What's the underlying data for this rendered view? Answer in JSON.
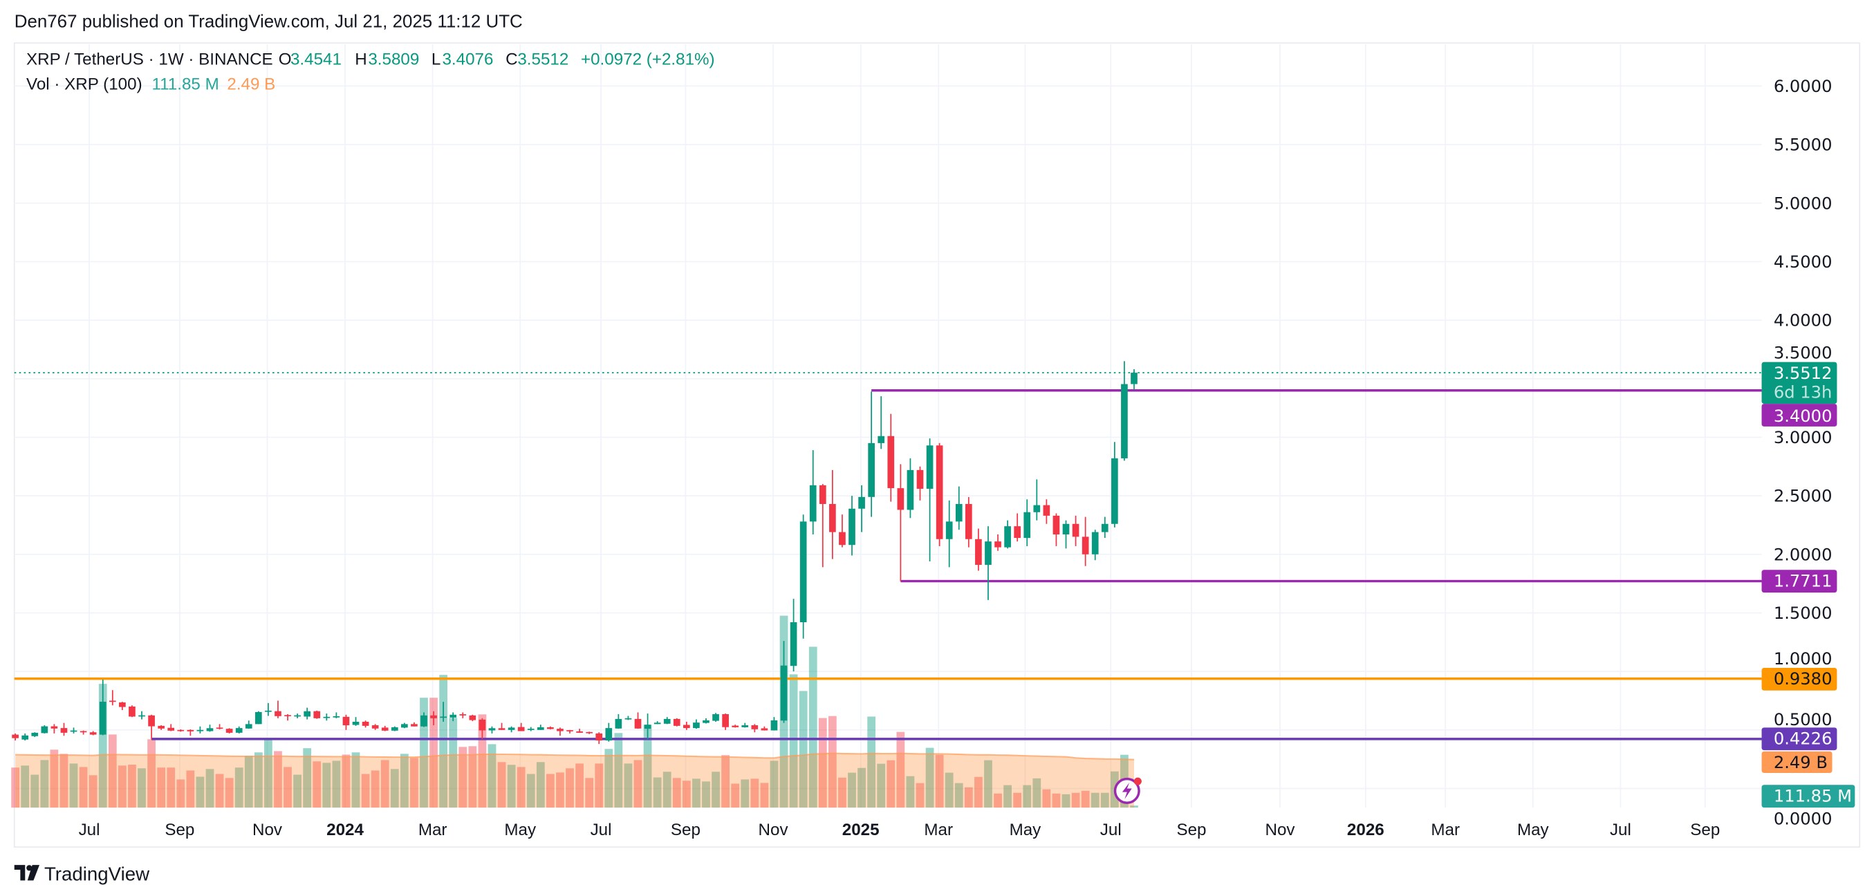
{
  "header": {
    "published": "Den767 published on TradingView.com, Jul 21, 2025 11:12 UTC"
  },
  "legend": {
    "symbol": "XRP / TetherUS · 1W · BINANCE",
    "o_label": "O",
    "o_value": "3.4541",
    "h_label": "H",
    "h_value": "3.5809",
    "l_label": "L",
    "l_value": "3.4076",
    "c_label": "C",
    "c_value": "3.5512",
    "change": "+0.0972 (+2.81%)",
    "vol_label": "Vol · XRP (100)",
    "vol_value": "111.85 M",
    "vol_ma_value": "2.49 B"
  },
  "badges": {
    "last_price": "3.5512",
    "countdown": "6d 13h",
    "level_resistance": "3.4000",
    "level_support": "1.7711",
    "level_orange": "0.9380",
    "level_base": "0.4226",
    "vol_ma": "2.49 B",
    "vol": "111.85 M"
  },
  "footer": {
    "brand": "TradingView"
  },
  "colors": {
    "up": "#089981",
    "down": "#f23645",
    "purple": "#9c27b0",
    "indigo": "#673ab7",
    "orange": "#ff9800",
    "vol_ma": "#ff9a55",
    "vol_badge": "#26a69a"
  },
  "chart_data": {
    "type": "candlestick",
    "title": "XRP / TetherUS · 1W · BINANCE",
    "interval": "1W",
    "y_ticks": [
      "0.0000",
      "0.5000",
      "1.0000",
      "1.5000",
      "2.0000",
      "2.5000",
      "3.0000",
      "3.5000",
      "4.0000",
      "4.5000",
      "5.0000",
      "5.5000",
      "6.0000"
    ],
    "ylim": [
      0,
      6
    ],
    "x_ticks": [
      {
        "label": "Jul",
        "week": 7.6,
        "bold": false
      },
      {
        "label": "Sep",
        "week": 16.9,
        "bold": false
      },
      {
        "label": "Nov",
        "week": 25.9,
        "bold": false
      },
      {
        "label": "2024",
        "week": 33.9,
        "bold": true
      },
      {
        "label": "Mar",
        "week": 42.9,
        "bold": false
      },
      {
        "label": "May",
        "week": 51.9,
        "bold": false
      },
      {
        "label": "Jul",
        "week": 60.2,
        "bold": false
      },
      {
        "label": "Sep",
        "week": 68.9,
        "bold": false
      },
      {
        "label": "Nov",
        "week": 77.9,
        "bold": false
      },
      {
        "label": "2025",
        "week": 86.9,
        "bold": true
      },
      {
        "label": "Mar",
        "week": 94.9,
        "bold": false
      },
      {
        "label": "May",
        "week": 103.8,
        "bold": false
      },
      {
        "label": "Jul",
        "week": 112.6,
        "bold": false
      },
      {
        "label": "Sep",
        "week": 120.9,
        "bold": false
      },
      {
        "label": "Nov",
        "week": 130.0,
        "bold": false
      },
      {
        "label": "2026",
        "week": 138.8,
        "bold": true
      },
      {
        "label": "Mar",
        "week": 147.0,
        "bold": false
      },
      {
        "label": "May",
        "week": 156.0,
        "bold": false
      },
      {
        "label": "Jul",
        "week": 165.0,
        "bold": false
      },
      {
        "label": "Sep",
        "week": 173.7,
        "bold": false
      }
    ],
    "horizontal_levels": [
      {
        "price": 3.4,
        "from_week": 88,
        "color": "purple"
      },
      {
        "price": 1.7711,
        "from_week": 91,
        "color": "purple"
      },
      {
        "price": 0.938,
        "from_week": -1,
        "color": "orange"
      },
      {
        "price": 0.4226,
        "from_week": 14,
        "color": "indigo"
      }
    ],
    "last_price": 3.5512,
    "volume_ma_length": 100,
    "volume_unit": "B",
    "candles_ohlcv": [
      [
        0.46,
        0.47,
        0.41,
        0.43,
        2.19
      ],
      [
        0.418,
        0.47,
        0.41,
        0.453,
        2.3
      ],
      [
        0.447,
        0.48,
        0.44,
        0.476,
        1.8
      ],
      [
        0.473,
        0.54,
        0.47,
        0.531,
        2.6
      ],
      [
        0.531,
        0.55,
        0.47,
        0.512,
        3.17
      ],
      [
        0.516,
        0.56,
        0.45,
        0.476,
        2.94
      ],
      [
        0.49,
        0.52,
        0.47,
        0.495,
        2.41
      ],
      [
        0.49,
        0.495,
        0.46,
        0.48,
        2.22
      ],
      [
        0.48,
        0.49,
        0.455,
        0.46,
        1.77
      ],
      [
        0.46,
        0.93,
        0.455,
        0.741,
        6.77
      ],
      [
        0.75,
        0.84,
        0.71,
        0.74,
        4.0
      ],
      [
        0.735,
        0.74,
        0.67,
        0.696,
        2.3
      ],
      [
        0.7,
        0.71,
        0.61,
        0.614,
        2.35
      ],
      [
        0.62,
        0.66,
        0.59,
        0.625,
        2.15
      ],
      [
        0.624,
        0.63,
        0.42,
        0.531,
        3.74
      ],
      [
        0.535,
        0.54,
        0.5,
        0.512,
        2.19
      ],
      [
        0.518,
        0.55,
        0.49,
        0.494,
        2.19
      ],
      [
        0.5,
        0.505,
        0.485,
        0.49,
        1.54
      ],
      [
        0.5,
        0.505,
        0.45,
        0.488,
        2.03
      ],
      [
        0.49,
        0.53,
        0.47,
        0.5,
        1.69
      ],
      [
        0.49,
        0.545,
        0.485,
        0.515,
        2.11
      ],
      [
        0.52,
        0.55,
        0.505,
        0.515,
        1.84
      ],
      [
        0.51,
        0.515,
        0.47,
        0.476,
        1.62
      ],
      [
        0.476,
        0.53,
        0.47,
        0.516,
        2.19
      ],
      [
        0.512,
        0.58,
        0.51,
        0.55,
        2.83
      ],
      [
        0.55,
        0.66,
        0.55,
        0.653,
        3.02
      ],
      [
        0.655,
        0.73,
        0.62,
        0.665,
        3.7
      ],
      [
        0.66,
        0.75,
        0.6,
        0.618,
        3.09
      ],
      [
        0.627,
        0.635,
        0.58,
        0.622,
        2.22
      ],
      [
        0.62,
        0.64,
        0.6,
        0.625,
        1.8
      ],
      [
        0.614,
        0.69,
        0.59,
        0.66,
        3.25
      ],
      [
        0.66,
        0.665,
        0.595,
        0.6,
        2.53
      ],
      [
        0.61,
        0.64,
        0.58,
        0.612,
        2.45
      ],
      [
        0.614,
        0.65,
        0.6,
        0.617,
        2.56
      ],
      [
        0.612,
        0.63,
        0.5,
        0.54,
        2.9
      ],
      [
        0.543,
        0.61,
        0.535,
        0.57,
        3.02
      ],
      [
        0.57,
        0.58,
        0.52,
        0.535,
        1.84
      ],
      [
        0.54,
        0.55,
        0.5,
        0.512,
        2.03
      ],
      [
        0.52,
        0.535,
        0.49,
        0.494,
        2.6
      ],
      [
        0.494,
        0.53,
        0.49,
        0.523,
        2.11
      ],
      [
        0.52,
        0.56,
        0.515,
        0.55,
        2.94
      ],
      [
        0.55,
        0.565,
        0.53,
        0.53,
        2.72
      ],
      [
        0.53,
        0.65,
        0.525,
        0.624,
        6.01
      ],
      [
        0.624,
        0.66,
        0.54,
        0.6,
        6.01
      ],
      [
        0.61,
        0.74,
        0.57,
        0.614,
        7.26
      ],
      [
        0.606,
        0.65,
        0.575,
        0.63,
        4.91
      ],
      [
        0.634,
        0.65,
        0.6,
        0.63,
        3.32
      ],
      [
        0.624,
        0.63,
        0.575,
        0.584,
        3.36
      ],
      [
        0.588,
        0.6,
        0.42,
        0.496,
        5.1
      ],
      [
        0.496,
        0.53,
        0.47,
        0.515,
        3.47
      ],
      [
        0.515,
        0.56,
        0.5,
        0.5,
        2.49
      ],
      [
        0.5,
        0.53,
        0.48,
        0.52,
        2.34
      ],
      [
        0.525,
        0.56,
        0.49,
        0.49,
        2.22
      ],
      [
        0.51,
        0.525,
        0.49,
        0.51,
        1.84
      ],
      [
        0.5,
        0.545,
        0.5,
        0.523,
        2.49
      ],
      [
        0.523,
        0.53,
        0.505,
        0.508,
        1.84
      ],
      [
        0.51,
        0.52,
        0.45,
        0.49,
        1.92
      ],
      [
        0.498,
        0.5,
        0.47,
        0.494,
        2.15
      ],
      [
        0.488,
        0.51,
        0.475,
        0.476,
        2.41
      ],
      [
        0.482,
        0.485,
        0.465,
        0.476,
        1.62
      ],
      [
        0.47,
        0.48,
        0.38,
        0.41,
        2.41
      ],
      [
        0.41,
        0.56,
        0.4,
        0.516,
        3.21
      ],
      [
        0.512,
        0.635,
        0.51,
        0.594,
        4.08
      ],
      [
        0.598,
        0.62,
        0.585,
        0.6,
        2.41
      ],
      [
        0.594,
        0.65,
        0.51,
        0.512,
        2.6
      ],
      [
        0.51,
        0.64,
        0.42,
        0.545,
        4.53
      ],
      [
        0.55,
        0.575,
        0.55,
        0.562,
        1.65
      ],
      [
        0.553,
        0.61,
        0.55,
        0.594,
        1.96
      ],
      [
        0.594,
        0.6,
        0.53,
        0.535,
        1.62
      ],
      [
        0.543,
        0.57,
        0.5,
        0.516,
        1.47
      ],
      [
        0.516,
        0.59,
        0.51,
        0.563,
        1.58
      ],
      [
        0.56,
        0.6,
        0.555,
        0.582,
        1.43
      ],
      [
        0.578,
        0.645,
        0.57,
        0.635,
        1.96
      ],
      [
        0.635,
        0.64,
        0.5,
        0.524,
        2.87
      ],
      [
        0.537,
        0.545,
        0.52,
        0.523,
        1.31
      ],
      [
        0.523,
        0.56,
        0.52,
        0.54,
        1.54
      ],
      [
        0.54,
        0.55,
        0.48,
        0.506,
        1.58
      ],
      [
        0.514,
        0.53,
        0.495,
        0.496,
        1.35
      ],
      [
        0.496,
        0.61,
        0.495,
        0.582,
        2.56
      ],
      [
        0.58,
        1.26,
        0.56,
        1.05,
        10.5
      ],
      [
        1.047,
        1.62,
        1.0,
        1.42,
        7.29
      ],
      [
        1.42,
        2.34,
        1.28,
        2.28,
        6.38
      ],
      [
        2.28,
        2.89,
        2.17,
        2.59,
        8.8
      ],
      [
        2.59,
        2.6,
        1.89,
        2.43,
        4.9
      ],
      [
        2.43,
        2.72,
        1.96,
        2.19,
        5.01
      ],
      [
        2.19,
        2.34,
        2.06,
        2.08,
        1.64
      ],
      [
        2.08,
        2.5,
        1.99,
        2.39,
        1.91
      ],
      [
        2.39,
        2.59,
        2.19,
        2.49,
        2.17
      ],
      [
        2.49,
        3.39,
        2.32,
        2.95,
        4.98
      ],
      [
        2.95,
        3.35,
        2.9,
        3.01,
        2.4
      ],
      [
        3.01,
        3.2,
        2.45,
        2.565,
        2.59
      ],
      [
        2.565,
        2.77,
        1.77,
        2.38,
        4.14
      ],
      [
        2.38,
        2.82,
        2.31,
        2.72,
        1.72
      ],
      [
        2.72,
        2.75,
        2.46,
        2.56,
        1.34
      ],
      [
        2.56,
        2.99,
        1.94,
        2.93,
        3.27
      ],
      [
        2.93,
        2.95,
        2.07,
        2.13,
        2.89
      ],
      [
        2.13,
        2.46,
        1.89,
        2.28,
        1.91
      ],
      [
        2.28,
        2.58,
        2.21,
        2.43,
        1.34
      ],
      [
        2.43,
        2.49,
        2.06,
        2.13,
        1.11
      ],
      [
        2.13,
        2.22,
        1.86,
        1.91,
        1.68
      ],
      [
        1.91,
        2.24,
        1.61,
        2.11,
        2.59
      ],
      [
        2.11,
        2.17,
        2.03,
        2.06,
        0.77
      ],
      [
        2.06,
        2.29,
        2.05,
        2.24,
        1.23
      ],
      [
        2.24,
        2.35,
        2.11,
        2.14,
        0.81
      ],
      [
        2.14,
        2.47,
        2.07,
        2.36,
        1.23
      ],
      [
        2.36,
        2.64,
        2.29,
        2.42,
        1.6
      ],
      [
        2.42,
        2.47,
        2.26,
        2.33,
        1.0
      ],
      [
        2.33,
        2.35,
        2.07,
        2.17,
        0.77
      ],
      [
        2.17,
        2.29,
        2.05,
        2.26,
        0.73
      ],
      [
        2.26,
        2.33,
        2.07,
        2.15,
        0.81
      ],
      [
        2.15,
        2.32,
        1.9,
        2.0,
        0.92
      ],
      [
        2.0,
        2.21,
        1.95,
        2.19,
        0.81
      ],
      [
        2.19,
        2.32,
        2.14,
        2.26,
        0.81
      ],
      [
        2.26,
        2.96,
        2.23,
        2.82,
        1.98
      ],
      [
        2.82,
        3.65,
        2.8,
        3.4541,
        2.89
      ],
      [
        3.4541,
        3.5809,
        3.4076,
        3.5512,
        0.11185
      ]
    ]
  }
}
